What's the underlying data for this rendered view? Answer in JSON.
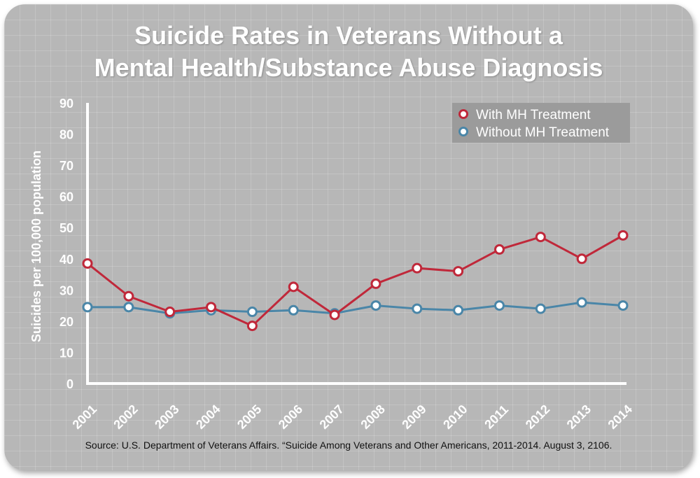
{
  "title_line1": "Suicide Rates in Veterans Without a",
  "title_line2": "Mental Health/Substance Abuse Diagnosis",
  "source": "Source: U.S. Department of Veterans Affairs. “Suicide Among Veterans and Other Americans, 2011-2014. August 3, 2106.",
  "chart_data": {
    "type": "line",
    "title": "Suicide Rates in Veterans Without a Mental Health/Substance Abuse Diagnosis",
    "xlabel": "",
    "ylabel": "Suicides per 100,000 population",
    "categories": [
      "2001",
      "2002",
      "2003",
      "2004",
      "2005",
      "2006",
      "2007",
      "2008",
      "2009",
      "2010",
      "2011",
      "2012",
      "2013",
      "2014"
    ],
    "ylim": [
      0,
      90
    ],
    "yticks": [
      0,
      10,
      20,
      30,
      40,
      50,
      60,
      70,
      80,
      90
    ],
    "grid": false,
    "legend_position": "top-right",
    "series": [
      {
        "name": "With MH Treatment",
        "color": "#c0283a",
        "values": [
          38.5,
          28,
          23,
          24.5,
          18.5,
          31,
          22,
          32,
          37,
          36,
          43,
          47,
          40,
          47.5
        ]
      },
      {
        "name": "Without MH Treatment",
        "color": "#4a86a8",
        "values": [
          24.5,
          24.5,
          22.5,
          23.5,
          23,
          23.5,
          22.5,
          25,
          24,
          23.5,
          25,
          24,
          26,
          25
        ]
      }
    ]
  },
  "colors": {
    "background": "#b7b7b7",
    "axis": "#ffffff",
    "legend_bg": "#9b9b9b"
  }
}
